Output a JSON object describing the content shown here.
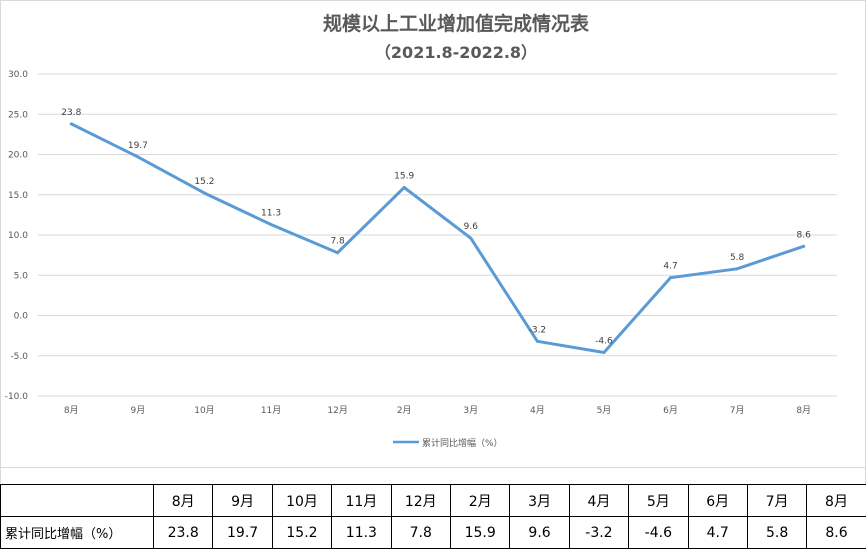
{
  "chart_data": {
    "type": "line",
    "title": "规模以上工业增加值完成情况表",
    "subtitle": "（2021.8-2022.8）",
    "categories": [
      "8月",
      "9月",
      "10月",
      "11月",
      "12月",
      "2月",
      "3月",
      "4月",
      "5月",
      "6月",
      "7月",
      "8月"
    ],
    "series": [
      {
        "name": "累计同比增幅（%）",
        "values": [
          23.8,
          19.7,
          15.2,
          11.3,
          7.8,
          15.9,
          9.6,
          -3.2,
          -4.6,
          4.7,
          5.8,
          8.6
        ],
        "color": "#5b9bd5"
      }
    ],
    "data_labels": [
      "23.8",
      "19.7",
      "15.2",
      "11.3",
      "7.8",
      "15.9",
      "9.6",
      "-3.2",
      "-4.6",
      "4.7",
      "5.8",
      "8.6"
    ],
    "y_ticks": [
      "30.0",
      "25.0",
      "20.0",
      "15.0",
      "10.0",
      "5.0",
      "0.0",
      "-5.0",
      "-10.0"
    ],
    "ylim": [
      -10,
      30
    ],
    "grid": true,
    "legend_position": "bottom",
    "xlabel": "",
    "ylabel": ""
  },
  "table": {
    "row_header": "累计同比增幅（%）",
    "headers": [
      "8月",
      "9月",
      "10月",
      "11月",
      "12月",
      "2月",
      "3月",
      "4月",
      "5月",
      "6月",
      "7月",
      "8月"
    ],
    "values": [
      "23.8",
      "19.7",
      "15.2",
      "11.3",
      "7.8",
      "15.9",
      "9.6",
      "-3.2",
      "-4.6",
      "4.7",
      "5.8",
      "8.6"
    ]
  },
  "colors": {
    "line": "#5b9bd5",
    "grid": "#d9d9d9",
    "text": "#595959"
  }
}
